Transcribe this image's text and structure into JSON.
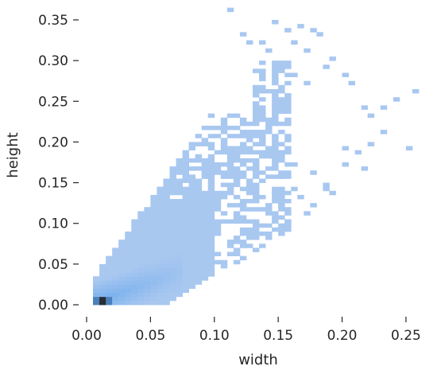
{
  "chart_data": {
    "type": "heatmap",
    "title": "",
    "xlabel": "width",
    "ylabel": "height",
    "xlim": [
      0.0,
      0.26
    ],
    "ylim": [
      -0.01,
      0.365
    ],
    "x_ticks": [
      0.0,
      0.05,
      0.1,
      0.15,
      0.2,
      0.25
    ],
    "x_tick_labels": [
      "0.00",
      "0.05",
      "0.10",
      "0.15",
      "0.20",
      "0.25"
    ],
    "y_ticks": [
      0.0,
      0.05,
      0.1,
      0.15,
      0.2,
      0.25,
      0.3,
      0.35
    ],
    "y_tick_labels": [
      "0.00",
      "0.05",
      "0.10",
      "0.15",
      "0.20",
      "0.25",
      "0.30",
      "0.35"
    ],
    "grid": false,
    "legend": "none",
    "bin_width": 0.005,
    "bin_height": 0.005,
    "density_scale": "light-blue to dark navy (higher count = darker)",
    "colors": {
      "light": "#a9c8f0",
      "mid": "#5fa3ec",
      "dark": "#1f3a5a",
      "darkest": "#2a2d34"
    },
    "density_regions": [
      {
        "name": "core",
        "x_range": [
          0.0075,
          0.02
        ],
        "y_range": [
          0.0,
          0.015
        ],
        "level": 1.0
      },
      {
        "name": "dense_band",
        "x_range": [
          0.01,
          0.075
        ],
        "y_range": [
          0.01,
          0.07
        ],
        "level": 0.6
      },
      {
        "name": "main_cloud",
        "x_range": [
          0.005,
          0.13
        ],
        "y_range": [
          0.0,
          0.235
        ],
        "level": 0.3
      },
      {
        "name": "upper_sparse_cloud",
        "x_range": [
          0.07,
          0.2
        ],
        "y_range": [
          0.05,
          0.31
        ],
        "level": 0.15
      }
    ],
    "outlier_points": [
      [
        0.11,
        0.36
      ],
      [
        0.145,
        0.345
      ],
      [
        0.155,
        0.335
      ],
      [
        0.165,
        0.34
      ],
      [
        0.175,
        0.335
      ],
      [
        0.12,
        0.33
      ],
      [
        0.125,
        0.32
      ],
      [
        0.135,
        0.32
      ],
      [
        0.14,
        0.31
      ],
      [
        0.16,
        0.32
      ],
      [
        0.17,
        0.31
      ],
      [
        0.18,
        0.33
      ],
      [
        0.19,
        0.3
      ],
      [
        0.2,
        0.28
      ],
      [
        0.205,
        0.27
      ],
      [
        0.215,
        0.24
      ],
      [
        0.22,
        0.23
      ],
      [
        0.23,
        0.24
      ],
      [
        0.24,
        0.25
      ],
      [
        0.255,
        0.26
      ],
      [
        0.185,
        0.29
      ],
      [
        0.16,
        0.28
      ],
      [
        0.17,
        0.27
      ],
      [
        0.2,
        0.19
      ],
      [
        0.21,
        0.185
      ],
      [
        0.22,
        0.195
      ],
      [
        0.23,
        0.21
      ],
      [
        0.25,
        0.19
      ],
      [
        0.215,
        0.165
      ],
      [
        0.2,
        0.17
      ],
      [
        0.185,
        0.145
      ],
      [
        0.19,
        0.135
      ],
      [
        0.175,
        0.12
      ],
      [
        0.165,
        0.13
      ],
      [
        0.17,
        0.11
      ],
      [
        0.15,
        0.12
      ],
      [
        0.155,
        0.1
      ],
      [
        0.14,
        0.095
      ],
      [
        0.145,
        0.125
      ],
      [
        0.16,
        0.14
      ],
      [
        0.185,
        0.14
      ],
      [
        0.175,
        0.16
      ],
      [
        0.15,
        0.155
      ],
      [
        0.16,
        0.17
      ]
    ]
  }
}
